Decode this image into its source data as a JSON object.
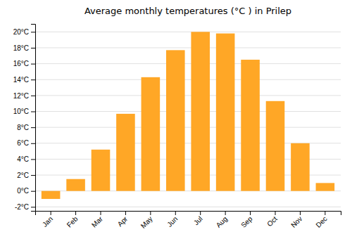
{
  "chart_data": {
    "type": "bar",
    "title": "Average monthly temperatures (°C ) in Prilep",
    "categories": [
      "Jan",
      "Feb",
      "Mar",
      "Apr",
      "May",
      "Jun",
      "Jul",
      "Aug",
      "Sep",
      "Oct",
      "Nov",
      "Dec"
    ],
    "values": [
      -1.0,
      1.5,
      5.2,
      9.7,
      14.3,
      17.7,
      20.0,
      19.8,
      16.5,
      11.3,
      6.0,
      1.0
    ],
    "color": "#FFA726",
    "ylim": [
      -2.5,
      21.0
    ],
    "yticks": [
      {
        "value": -2,
        "label": "-2°C"
      },
      {
        "value": 0,
        "label": "0°C"
      },
      {
        "value": 2,
        "label": "2°C"
      },
      {
        "value": 4,
        "label": "4°C"
      },
      {
        "value": 6,
        "label": "6°C"
      },
      {
        "value": 8,
        "label": "8°C"
      },
      {
        "value": 10,
        "label": "10°C"
      },
      {
        "value": 12,
        "label": "12°C"
      },
      {
        "value": 14,
        "label": "14°C"
      },
      {
        "value": 16,
        "label": "16°C"
      },
      {
        "value": 18,
        "label": "18°C"
      },
      {
        "value": 20,
        "label": "20°C"
      }
    ],
    "grid": true
  }
}
